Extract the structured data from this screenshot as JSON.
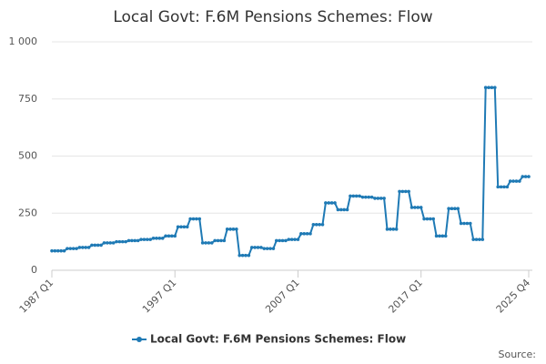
{
  "chart_data": {
    "type": "line",
    "title": "Local Govt: F.6M Pensions Schemes: Flow",
    "source": "Source:",
    "categories": [
      "1987 Q1",
      null,
      null,
      null,
      null,
      null,
      null,
      null,
      null,
      null,
      null,
      null,
      null,
      null,
      null,
      null,
      null,
      null,
      null,
      null,
      null,
      null,
      null,
      null,
      null,
      null,
      null,
      null,
      null,
      null,
      null,
      null,
      null,
      null,
      null,
      null,
      null,
      null,
      null,
      null,
      "1997 Q1",
      null,
      null,
      null,
      null,
      null,
      null,
      null,
      null,
      null,
      null,
      null,
      null,
      null,
      null,
      null,
      null,
      null,
      null,
      null,
      null,
      null,
      null,
      null,
      null,
      null,
      null,
      null,
      null,
      null,
      null,
      null,
      null,
      null,
      null,
      null,
      null,
      null,
      null,
      null,
      "2007 Q1",
      null,
      null,
      null,
      null,
      null,
      null,
      null,
      null,
      null,
      null,
      null,
      null,
      null,
      null,
      null,
      null,
      null,
      null,
      null,
      null,
      null,
      null,
      null,
      null,
      null,
      null,
      null,
      null,
      null,
      null,
      null,
      null,
      null,
      null,
      null,
      null,
      null,
      null,
      null,
      "2017 Q1",
      null,
      null,
      null,
      null,
      null,
      null,
      null,
      null,
      null,
      null,
      null,
      null,
      null,
      null,
      null,
      null,
      null,
      null,
      null,
      null,
      null,
      null,
      null,
      null,
      null,
      null,
      null,
      null,
      null,
      null,
      null,
      null,
      null,
      null,
      "2025 Q4"
    ],
    "series": [
      {
        "name": "Local Govt: F.6M Pensions Schemes: Flow",
        "color": "#1f7ab5",
        "values": [
          85,
          85,
          85,
          85,
          85,
          95,
          95,
          95,
          95,
          100,
          100,
          100,
          100,
          110,
          110,
          110,
          110,
          120,
          120,
          120,
          120,
          125,
          125,
          125,
          125,
          130,
          130,
          130,
          130,
          135,
          135,
          135,
          135,
          140,
          140,
          140,
          140,
          150,
          150,
          150,
          150,
          190,
          190,
          190,
          190,
          225,
          225,
          225,
          225,
          120,
          120,
          120,
          120,
          130,
          130,
          130,
          130,
          180,
          180,
          180,
          180,
          65,
          65,
          65,
          65,
          100,
          100,
          100,
          100,
          95,
          95,
          95,
          95,
          130,
          130,
          130,
          130,
          135,
          135,
          135,
          135,
          160,
          160,
          160,
          160,
          200,
          200,
          200,
          200,
          295,
          295,
          295,
          295,
          265,
          265,
          265,
          265,
          325,
          325,
          325,
          325,
          320,
          320,
          320,
          320,
          315,
          315,
          315,
          315,
          180,
          180,
          180,
          180,
          345,
          345,
          345,
          345,
          275,
          275,
          275,
          275,
          225,
          225,
          225,
          225,
          150,
          150,
          150,
          150,
          270,
          270,
          270,
          270,
          205,
          205,
          205,
          205,
          135,
          135,
          135,
          135,
          800,
          800,
          800,
          800,
          365,
          365,
          365,
          365,
          390,
          390,
          390,
          390,
          410,
          410,
          410
        ]
      }
    ],
    "ylim": [
      0,
      1000
    ],
    "yticks": [
      0,
      250,
      500,
      750,
      {
        "value": 1000,
        "label": "1 000"
      }
    ],
    "grid": true,
    "legend": "bottom"
  }
}
